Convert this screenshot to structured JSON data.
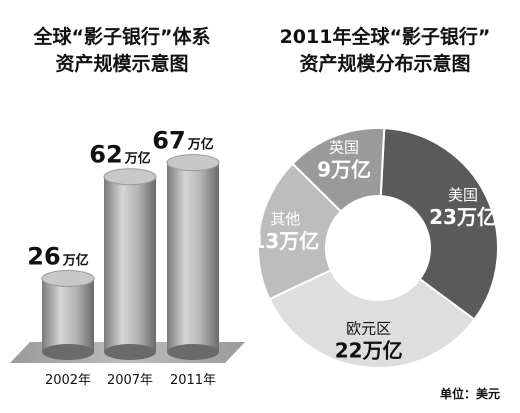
{
  "chart_data": [
    {
      "type": "bar",
      "title": [
        "全球“影子银行”体系",
        "资产规模示意图"
      ],
      "categories": [
        "2002年",
        "2007年",
        "2011年"
      ],
      "values": [
        26,
        62,
        67
      ],
      "value_unit": "万亿",
      "ylim": [
        0,
        75
      ],
      "grid": false,
      "colors": {
        "bar": "#8f8f8f",
        "bar_light": "#d9d9d9",
        "bar_dark": "#6a6a6a",
        "top": "#c8c8c8"
      }
    },
    {
      "type": "pie",
      "donut": true,
      "title": [
        "2011年全球“影子银行”",
        "资产规模分布示意图"
      ],
      "slices": [
        {
          "label": "美国",
          "value": 23,
          "value_text": "23万亿",
          "color": "#5a5a5a",
          "text_color": "#ffffff"
        },
        {
          "label": "欧元区",
          "value": 22,
          "value_text": "22万亿",
          "color": "#dedede",
          "text_color": "#111111"
        },
        {
          "label": "其他",
          "value": 13,
          "value_text": "13万亿",
          "color": "#bdbdbd",
          "text_color": "#ffffff"
        },
        {
          "label": "英国",
          "value": 9,
          "value_text": "9万亿",
          "color": "#9a9a9a",
          "text_color": "#ffffff"
        }
      ]
    }
  ],
  "footer": {
    "unit_note": "单位：美元"
  }
}
